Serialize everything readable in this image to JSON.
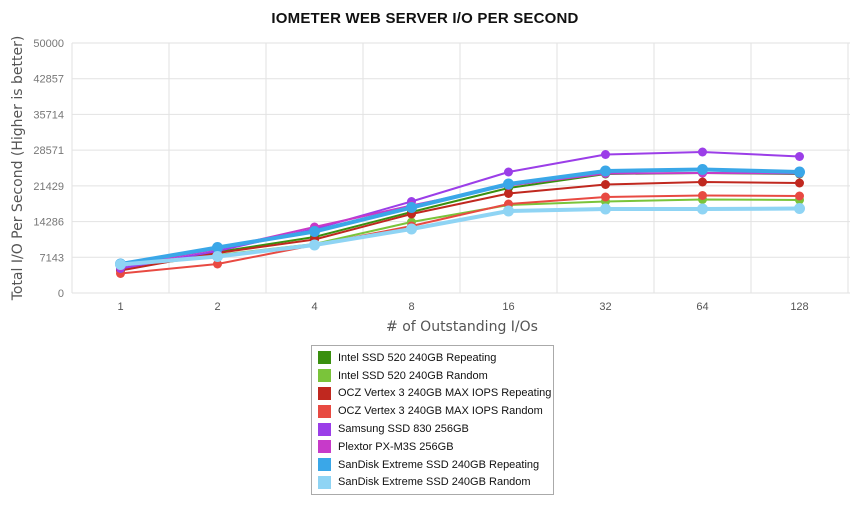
{
  "chart_data": {
    "type": "line",
    "title": "IOMETER WEB SERVER I/O PER SECOND",
    "xlabel": "# of Outstanding I/Os",
    "ylabel": "Total I/O Per Second (Higher is better)",
    "categories": [
      "1",
      "2",
      "4",
      "8",
      "16",
      "32",
      "64",
      "128"
    ],
    "yticks": [
      "0",
      "7143",
      "14286",
      "21429",
      "28571",
      "35714",
      "42857",
      "50000"
    ],
    "ylim": [
      0,
      50000
    ],
    "grid": true,
    "legend_position": "bottom",
    "series": [
      {
        "name": "Intel SSD 520 240GB Repeating",
        "color": "#3a8f0f",
        "values": [
          4700,
          8200,
          11200,
          16200,
          21000,
          23800,
          24000,
          23800
        ]
      },
      {
        "name": "Intel SSD 520 240GB Random",
        "color": "#7ac43a",
        "values": [
          4900,
          7600,
          9800,
          14200,
          17600,
          18300,
          18700,
          18600
        ]
      },
      {
        "name": "OCZ Vertex 3 240GB MAX IOPS Repeating",
        "color": "#c0281f",
        "values": [
          4500,
          8000,
          10700,
          15800,
          19900,
          21700,
          22200,
          22000
        ]
      },
      {
        "name": "OCZ Vertex 3 240GB MAX IOPS Random",
        "color": "#e84a42",
        "values": [
          3900,
          5800,
          9600,
          13400,
          17800,
          19200,
          19500,
          19400
        ]
      },
      {
        "name": "Samsung SSD 830 256GB",
        "color": "#9b3ee8",
        "values": [
          4900,
          8400,
          12800,
          18300,
          24200,
          27700,
          28200,
          27300
        ]
      },
      {
        "name": "Plextor PX-M3S 256GB",
        "color": "#c73ac9",
        "values": [
          5300,
          8800,
          13200,
          17500,
          21500,
          23900,
          24000,
          23900
        ]
      },
      {
        "name": "SanDisk Extreme SSD 240GB Repeating",
        "color": "#3aa7e8",
        "values": [
          5800,
          9100,
          12300,
          17100,
          21800,
          24400,
          24700,
          24200
        ]
      },
      {
        "name": "SanDisk Extreme SSD 240GB Random",
        "color": "#8fd4f4",
        "values": [
          5700,
          7300,
          9600,
          12800,
          16400,
          16800,
          16800,
          16900
        ]
      }
    ]
  }
}
